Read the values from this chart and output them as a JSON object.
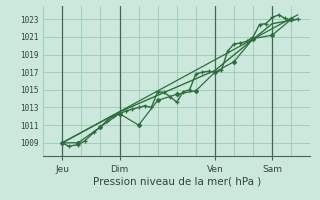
{
  "xlabel": "Pression niveau de la mer( hPa )",
  "bg_color": "#cce8dc",
  "grid_color": "#99ccb3",
  "line_color": "#2d6e3e",
  "vline_color": "#446655",
  "yticks": [
    1009,
    1011,
    1013,
    1015,
    1017,
    1019,
    1021,
    1023
  ],
  "ylim": [
    1007.5,
    1024.5
  ],
  "xlim": [
    -6,
    78
  ],
  "xtick_positions": [
    0,
    18,
    48,
    66
  ],
  "xtick_labels": [
    "Jeu",
    "Dim",
    "Ven",
    "Sam"
  ],
  "vline_positions": [
    0,
    18,
    48,
    66
  ],
  "series1_x": [
    0,
    2,
    5,
    7,
    10,
    12,
    14,
    16,
    18,
    20,
    22,
    24,
    26,
    28,
    30,
    32,
    34,
    36,
    38,
    40,
    42,
    44,
    46,
    48,
    50,
    52,
    54,
    56,
    58,
    60,
    62,
    64,
    66,
    68,
    70,
    72,
    74
  ],
  "series1_y": [
    1009.0,
    1008.6,
    1008.8,
    1009.2,
    1010.2,
    1010.8,
    1011.5,
    1012.0,
    1012.3,
    1012.6,
    1012.8,
    1013.0,
    1013.2,
    1013.0,
    1014.8,
    1014.7,
    1014.2,
    1013.6,
    1014.8,
    1015.0,
    1016.8,
    1017.0,
    1017.1,
    1017.0,
    1017.2,
    1019.4,
    1020.2,
    1020.3,
    1020.5,
    1021.0,
    1022.4,
    1022.5,
    1023.2,
    1023.5,
    1023.1,
    1022.9,
    1023.0
  ],
  "series2_x": [
    0,
    5,
    12,
    18,
    24,
    30,
    36,
    42,
    48,
    54,
    60,
    66,
    72
  ],
  "series2_y": [
    1009.0,
    1009.0,
    1010.8,
    1012.3,
    1011.0,
    1013.8,
    1014.5,
    1014.9,
    1017.0,
    1018.2,
    1020.8,
    1021.2,
    1023.0
  ],
  "series3_x": [
    0,
    18,
    48,
    66,
    74
  ],
  "series3_y": [
    1009.0,
    1012.5,
    1017.2,
    1022.5,
    1023.0
  ],
  "trend_x": [
    0,
    74
  ],
  "trend_y": [
    1009.0,
    1023.5
  ]
}
